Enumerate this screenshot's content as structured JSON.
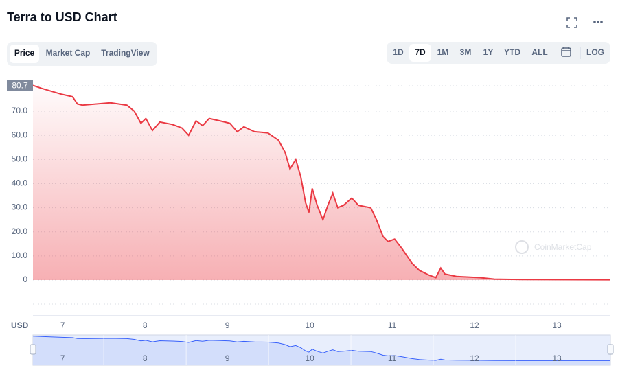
{
  "header": {
    "title": "Terra to USD Chart",
    "tabs": [
      "Price",
      "Market Cap",
      "TradingView"
    ],
    "selected_tab": "Price",
    "ranges": [
      "1D",
      "7D",
      "1M",
      "3M",
      "1Y",
      "YTD",
      "ALL",
      "LOG"
    ],
    "selected_range": "7D"
  },
  "chart_data": {
    "type": "line",
    "currency": "USD",
    "current_price": {
      "value": 80.7,
      "label": "80.7"
    },
    "watermark": "CoinMarketCap",
    "x": [
      6.64,
      6.74,
      6.99,
      7.12,
      7.18,
      7.24,
      7.41,
      7.58,
      7.78,
      7.87,
      7.95,
      8.01,
      8.09,
      8.18,
      8.33,
      8.45,
      8.53,
      8.62,
      8.7,
      8.78,
      8.91,
      9.03,
      9.12,
      9.2,
      9.33,
      9.49,
      9.62,
      9.7,
      9.76,
      9.83,
      9.89,
      9.95,
      9.99,
      10.03,
      10.09,
      10.16,
      10.22,
      10.28,
      10.34,
      10.41,
      10.51,
      10.59,
      10.74,
      10.81,
      10.89,
      10.95,
      11.03,
      11.12,
      11.24,
      11.33,
      11.45,
      11.53,
      11.59,
      11.64,
      11.78,
      12.07,
      12.24,
      12.58,
      13.65
    ],
    "series": [
      {
        "name": "Price",
        "color": "#ea3943",
        "values": [
          80.7,
          79.5,
          77,
          76,
          73,
          72.5,
          73,
          73.5,
          72.5,
          70,
          65,
          67,
          62,
          65.5,
          64.5,
          63,
          60,
          66,
          64,
          67,
          66,
          65,
          61.5,
          63.5,
          61.5,
          61,
          58,
          53,
          46,
          50,
          43,
          32,
          28,
          38,
          31,
          25,
          31,
          36,
          30,
          31,
          34,
          31,
          30,
          25,
          18,
          16,
          17,
          13,
          7,
          4,
          2,
          1,
          5,
          2.5,
          1.5,
          1,
          0.4,
          0.2,
          0.1
        ]
      }
    ],
    "xlim": [
      6.64,
      13.65
    ],
    "xticks": [
      7,
      8,
      9,
      10,
      11,
      12,
      13
    ],
    "ylim": [
      -14.8,
      84.8
    ],
    "yticks": [
      0,
      {
        "value": 10,
        "label": "10.0"
      },
      {
        "value": 20,
        "label": "20.0"
      },
      {
        "value": 30,
        "label": "30.0"
      },
      {
        "value": 40,
        "label": "40.0"
      },
      {
        "value": 50,
        "label": "50.0"
      },
      {
        "value": 60,
        "label": "60.0"
      },
      {
        "value": 70,
        "label": "70.0"
      }
    ],
    "grid": true
  }
}
